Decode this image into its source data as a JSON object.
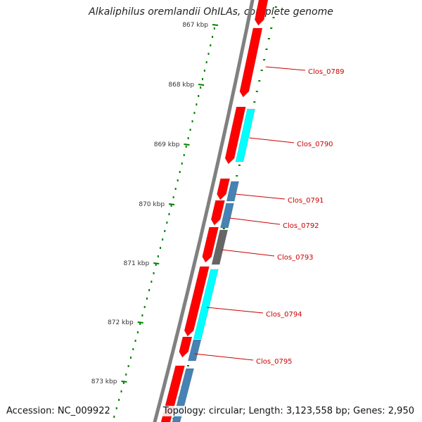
{
  "title": "Alkaliphilus oremlandii OhILAs, complete genome",
  "accession": "Accession: NC_009922",
  "summary": "Topology: circular; Length: 3,123,558 bp; Genes: 2,950",
  "colors": {
    "backbone": "#808080",
    "forward_cds": "#ff0000",
    "reverse_cds": "#00ffff",
    "steelblue_cds": "#4682b4",
    "gray_cds": "#666666",
    "tick": "#008000",
    "label": "#cc0000"
  },
  "kbp_ticks": [
    "867 kbp",
    "868 kbp",
    "869 kbp",
    "870 kbp",
    "871 kbp",
    "872 kbp",
    "873 kbp"
  ],
  "gene_labels": [
    "Clos_0789",
    "Clos_0790",
    "Clos_0791",
    "Clos_0792",
    "Clos_0793",
    "Clos_0794",
    "Clos_0795"
  ]
}
